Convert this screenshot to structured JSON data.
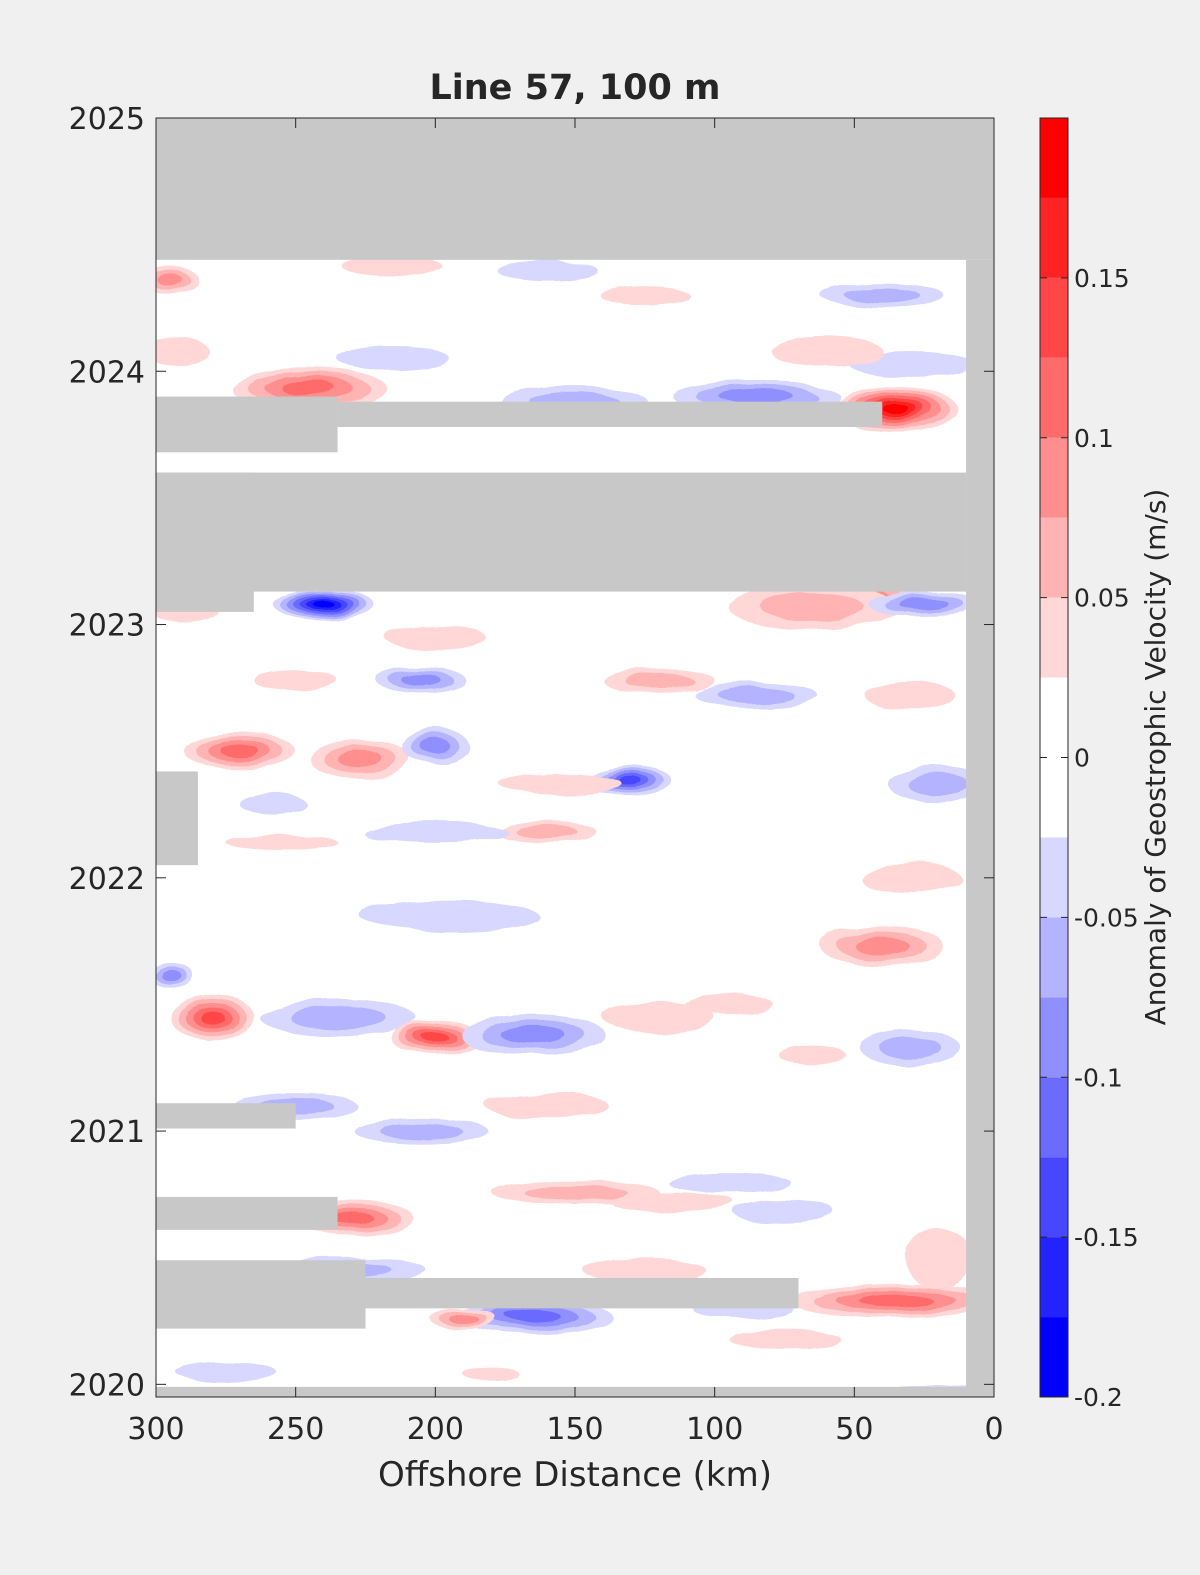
{
  "chart_data": {
    "type": "heatmap",
    "title": "Line 57, 100 m",
    "xlabel": "Offshore Distance (km)",
    "ylabel": "",
    "xlim": [
      300,
      0
    ],
    "x_reversed": true,
    "ylim": [
      2019.95,
      2025
    ],
    "x_ticks": [
      300,
      250,
      200,
      150,
      100,
      50,
      0
    ],
    "y_ticks": [
      2020,
      2021,
      2022,
      2023,
      2024,
      2025
    ],
    "grid": false,
    "colorbar": {
      "label": "Anomaly of Geostrophic Velocity (m/s)",
      "range": [
        -0.2,
        0.2
      ],
      "tick_values": [
        -0.2,
        -0.15,
        -0.1,
        -0.05,
        0,
        0.05,
        0.1,
        0.15
      ],
      "tick_labels": [
        "-0.2",
        "-0.15",
        "-0.1",
        "-0.05",
        "0",
        "0.05",
        "0.1",
        "0.15"
      ],
      "levels": [
        {
          "from": -0.2,
          "to": -0.175,
          "color": "#0000ff"
        },
        {
          "from": -0.175,
          "to": -0.15,
          "color": "#2323ff"
        },
        {
          "from": -0.15,
          "to": -0.125,
          "color": "#4747ff"
        },
        {
          "from": -0.125,
          "to": -0.1,
          "color": "#6b6bff"
        },
        {
          "from": -0.1,
          "to": -0.075,
          "color": "#8f8fff"
        },
        {
          "from": -0.075,
          "to": -0.05,
          "color": "#b3b3ff"
        },
        {
          "from": -0.05,
          "to": -0.025,
          "color": "#d7d7ff"
        },
        {
          "from": -0.025,
          "to": 0,
          "color": "#ffffff"
        },
        {
          "from": 0,
          "to": 0.025,
          "color": "#ffffff"
        },
        {
          "from": 0.025,
          "to": 0.05,
          "color": "#ffd7d7"
        },
        {
          "from": 0.05,
          "to": 0.075,
          "color": "#ffb3b3"
        },
        {
          "from": 0.075,
          "to": 0.1,
          "color": "#ff8f8f"
        },
        {
          "from": 0.1,
          "to": 0.125,
          "color": "#ff6b6b"
        },
        {
          "from": 0.125,
          "to": 0.15,
          "color": "#ff4747"
        },
        {
          "from": 0.15,
          "to": 0.175,
          "color": "#ff2323"
        },
        {
          "from": 0.175,
          "to": 0.2,
          "color": "#ff0000"
        }
      ]
    },
    "no_data_color": "#c8c8c8",
    "no_data_regions": [
      {
        "x0": 300,
        "x1": 0,
        "y0": 2024.44,
        "y1": 2025
      },
      {
        "x0": 10,
        "x1": 0,
        "y0": 2019.95,
        "y1": 2024.44
      },
      {
        "x0": 300,
        "x1": 10,
        "y0": 2023.13,
        "y1": 2023.6
      },
      {
        "x0": 300,
        "x1": 265,
        "y0": 2023.05,
        "y1": 2023.6
      },
      {
        "x0": 300,
        "x1": 235,
        "y0": 2023.68,
        "y1": 2023.9
      },
      {
        "x0": 235,
        "x1": 40,
        "y0": 2023.78,
        "y1": 2023.88
      },
      {
        "x0": 300,
        "x1": 285,
        "y0": 2022.05,
        "y1": 2022.42
      },
      {
        "x0": 300,
        "x1": 250,
        "y0": 2021.01,
        "y1": 2021.11
      },
      {
        "x0": 300,
        "x1": 235,
        "y0": 2020.61,
        "y1": 2020.74
      },
      {
        "x0": 300,
        "x1": 225,
        "y0": 2020.22,
        "y1": 2020.49
      },
      {
        "x0": 225,
        "x1": 70,
        "y0": 2020.3,
        "y1": 2020.42
      },
      {
        "x0": 300,
        "x1": 0,
        "y0": 2019.95,
        "y1": 2019.99
      }
    ],
    "anomaly_features": [
      {
        "x": 35,
        "y": 2023.85,
        "rx": 22,
        "ry": 0.09,
        "value": 0.2
      },
      {
        "x": 55,
        "y": 2023.1,
        "rx": 28,
        "ry": 0.09,
        "value": 0.16
      },
      {
        "x": 240,
        "y": 2023.08,
        "rx": 18,
        "ry": 0.06,
        "value": -0.2
      },
      {
        "x": 245,
        "y": 2023.93,
        "rx": 28,
        "ry": 0.08,
        "value": 0.14
      },
      {
        "x": 270,
        "y": 2022.5,
        "rx": 20,
        "ry": 0.07,
        "value": 0.13
      },
      {
        "x": 227,
        "y": 2022.47,
        "rx": 18,
        "ry": 0.08,
        "value": 0.12
      },
      {
        "x": 200,
        "y": 2022.52,
        "rx": 12,
        "ry": 0.07,
        "value": -0.11
      },
      {
        "x": 130,
        "y": 2022.38,
        "rx": 15,
        "ry": 0.06,
        "value": -0.15
      },
      {
        "x": 280,
        "y": 2021.45,
        "rx": 15,
        "ry": 0.09,
        "value": 0.16
      },
      {
        "x": 200,
        "y": 2021.37,
        "rx": 16,
        "ry": 0.07,
        "value": 0.16
      },
      {
        "x": 165,
        "y": 2021.38,
        "rx": 26,
        "ry": 0.08,
        "value": -0.11
      },
      {
        "x": 235,
        "y": 2021.45,
        "rx": 28,
        "ry": 0.07,
        "value": -0.08
      },
      {
        "x": 230,
        "y": 2020.66,
        "rx": 22,
        "ry": 0.07,
        "value": 0.14
      },
      {
        "x": 165,
        "y": 2020.27,
        "rx": 28,
        "ry": 0.07,
        "value": -0.14
      },
      {
        "x": 35,
        "y": 2020.33,
        "rx": 38,
        "ry": 0.07,
        "value": 0.13
      },
      {
        "x": 65,
        "y": 2023.07,
        "rx": 30,
        "ry": 0.09,
        "value": 0.08
      },
      {
        "x": 25,
        "y": 2023.08,
        "rx": 20,
        "ry": 0.05,
        "value": -0.1
      },
      {
        "x": 200,
        "y": 2022.95,
        "rx": 18,
        "ry": 0.05,
        "value": 0.06
      },
      {
        "x": 290,
        "y": 2023.06,
        "rx": 12,
        "ry": 0.05,
        "value": 0.06
      },
      {
        "x": 215,
        "y": 2024.05,
        "rx": 20,
        "ry": 0.05,
        "value": -0.06
      },
      {
        "x": 150,
        "y": 2023.88,
        "rx": 26,
        "ry": 0.06,
        "value": -0.08
      },
      {
        "x": 85,
        "y": 2023.9,
        "rx": 30,
        "ry": 0.06,
        "value": -0.12
      },
      {
        "x": 30,
        "y": 2024.03,
        "rx": 22,
        "ry": 0.05,
        "value": -0.07
      },
      {
        "x": 60,
        "y": 2024.08,
        "rx": 20,
        "ry": 0.06,
        "value": 0.07
      },
      {
        "x": 40,
        "y": 2024.3,
        "rx": 22,
        "ry": 0.05,
        "value": -0.08
      },
      {
        "x": 295,
        "y": 2024.36,
        "rx": 10,
        "ry": 0.06,
        "value": 0.1
      },
      {
        "x": 293,
        "y": 2024.08,
        "rx": 12,
        "ry": 0.05,
        "value": 0.07
      },
      {
        "x": 160,
        "y": 2024.4,
        "rx": 18,
        "ry": 0.04,
        "value": -0.05
      },
      {
        "x": 215,
        "y": 2024.41,
        "rx": 18,
        "ry": 0.04,
        "value": 0.06
      },
      {
        "x": 125,
        "y": 2024.3,
        "rx": 16,
        "ry": 0.04,
        "value": 0.06
      },
      {
        "x": 120,
        "y": 2022.78,
        "rx": 20,
        "ry": 0.05,
        "value": 0.08
      },
      {
        "x": 205,
        "y": 2022.78,
        "rx": 16,
        "ry": 0.05,
        "value": -0.11
      },
      {
        "x": 250,
        "y": 2022.78,
        "rx": 15,
        "ry": 0.04,
        "value": 0.07
      },
      {
        "x": 85,
        "y": 2022.72,
        "rx": 22,
        "ry": 0.05,
        "value": -0.08
      },
      {
        "x": 30,
        "y": 2022.72,
        "rx": 16,
        "ry": 0.06,
        "value": 0.06
      },
      {
        "x": 155,
        "y": 2022.37,
        "rx": 22,
        "ry": 0.04,
        "value": 0.07
      },
      {
        "x": 20,
        "y": 2022.37,
        "rx": 18,
        "ry": 0.07,
        "value": -0.08
      },
      {
        "x": 160,
        "y": 2022.18,
        "rx": 18,
        "ry": 0.04,
        "value": 0.08
      },
      {
        "x": 200,
        "y": 2022.18,
        "rx": 26,
        "ry": 0.04,
        "value": -0.05
      },
      {
        "x": 258,
        "y": 2022.29,
        "rx": 12,
        "ry": 0.04,
        "value": -0.06
      },
      {
        "x": 255,
        "y": 2022.14,
        "rx": 20,
        "ry": 0.03,
        "value": 0.05
      },
      {
        "x": 30,
        "y": 2022.0,
        "rx": 18,
        "ry": 0.06,
        "value": 0.06
      },
      {
        "x": 40,
        "y": 2021.73,
        "rx": 22,
        "ry": 0.08,
        "value": 0.1
      },
      {
        "x": 195,
        "y": 2021.85,
        "rx": 32,
        "ry": 0.06,
        "value": -0.05
      },
      {
        "x": 295,
        "y": 2021.62,
        "rx": 8,
        "ry": 0.05,
        "value": -0.1
      },
      {
        "x": 95,
        "y": 2021.5,
        "rx": 16,
        "ry": 0.04,
        "value": 0.06
      },
      {
        "x": 120,
        "y": 2021.45,
        "rx": 20,
        "ry": 0.06,
        "value": 0.06
      },
      {
        "x": 30,
        "y": 2021.33,
        "rx": 18,
        "ry": 0.07,
        "value": -0.08
      },
      {
        "x": 65,
        "y": 2021.3,
        "rx": 12,
        "ry": 0.04,
        "value": 0.06
      },
      {
        "x": 205,
        "y": 2021.0,
        "rx": 24,
        "ry": 0.05,
        "value": -0.09
      },
      {
        "x": 250,
        "y": 2021.1,
        "rx": 22,
        "ry": 0.05,
        "value": -0.08
      },
      {
        "x": 160,
        "y": 2021.1,
        "rx": 22,
        "ry": 0.05,
        "value": 0.06
      },
      {
        "x": 95,
        "y": 2020.8,
        "rx": 22,
        "ry": 0.04,
        "value": -0.06
      },
      {
        "x": 150,
        "y": 2020.76,
        "rx": 30,
        "ry": 0.05,
        "value": 0.08
      },
      {
        "x": 115,
        "y": 2020.72,
        "rx": 22,
        "ry": 0.04,
        "value": 0.06
      },
      {
        "x": 20,
        "y": 2020.5,
        "rx": 12,
        "ry": 0.12,
        "value": 0.07
      },
      {
        "x": 75,
        "y": 2020.68,
        "rx": 18,
        "ry": 0.05,
        "value": -0.05
      },
      {
        "x": 190,
        "y": 2020.26,
        "rx": 12,
        "ry": 0.04,
        "value": 0.1
      },
      {
        "x": 125,
        "y": 2020.45,
        "rx": 22,
        "ry": 0.05,
        "value": 0.06
      },
      {
        "x": 90,
        "y": 2020.3,
        "rx": 18,
        "ry": 0.04,
        "value": -0.06
      },
      {
        "x": 235,
        "y": 2020.45,
        "rx": 32,
        "ry": 0.05,
        "value": -0.09
      },
      {
        "x": 25,
        "y": 2019.97,
        "rx": 20,
        "ry": 0.03,
        "value": -0.1
      },
      {
        "x": 275,
        "y": 2020.05,
        "rx": 18,
        "ry": 0.04,
        "value": -0.05
      },
      {
        "x": 75,
        "y": 2020.18,
        "rx": 20,
        "ry": 0.04,
        "value": 0.06
      },
      {
        "x": 180,
        "y": 2020.04,
        "rx": 10,
        "ry": 0.03,
        "value": 0.05
      }
    ]
  }
}
